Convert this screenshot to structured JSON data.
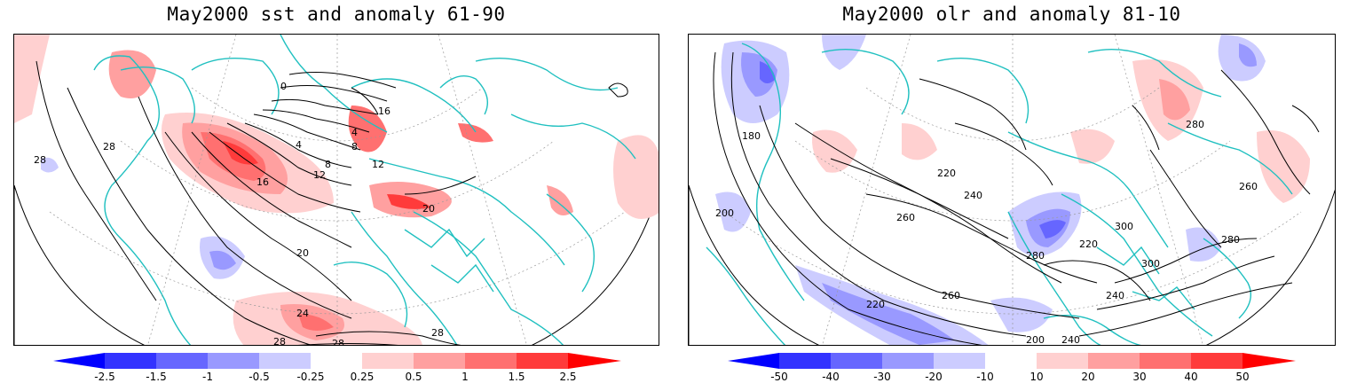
{
  "panels": [
    {
      "title": "May2000 sst and anomaly 61-90",
      "contour_labels": [
        "0",
        "4",
        "4",
        "8",
        "8",
        "12",
        "12",
        "16",
        "16",
        "20",
        "20",
        "24",
        "28",
        "28",
        "28",
        "28",
        "28"
      ],
      "colorbar": {
        "ticks": [
          "-2.5",
          "-1.5",
          "-1",
          "-0.5",
          "-0.25",
          "0.25",
          "0.5",
          "1",
          "1.5",
          "2.5"
        ],
        "colors": [
          "#3333ff",
          "#6666ff",
          "#9999ff",
          "#ccccff",
          "#ffffff",
          "#ffd0d0",
          "#ffa0a0",
          "#ff7070",
          "#ff3b3b"
        ]
      }
    },
    {
      "title": "May2000 olr and anomaly 81-10",
      "contour_labels": [
        "200",
        "220",
        "240",
        "260",
        "280",
        "300",
        "220",
        "240",
        "260",
        "280",
        "300",
        "200",
        "180",
        "220",
        "240",
        "260",
        "280"
      ],
      "colorbar": {
        "ticks": [
          "-50",
          "-40",
          "-30",
          "-20",
          "-10",
          "10",
          "20",
          "30",
          "40",
          "50"
        ],
        "colors": [
          "#3333ff",
          "#6666ff",
          "#9999ff",
          "#ccccff",
          "#ffffff",
          "#ffd0d0",
          "#ffa0a0",
          "#ff7070",
          "#ff3b3b"
        ]
      }
    }
  ],
  "styles": {
    "coast_color": "#20c0c0",
    "contour_color": "#000000",
    "grid_color": "#999999"
  }
}
